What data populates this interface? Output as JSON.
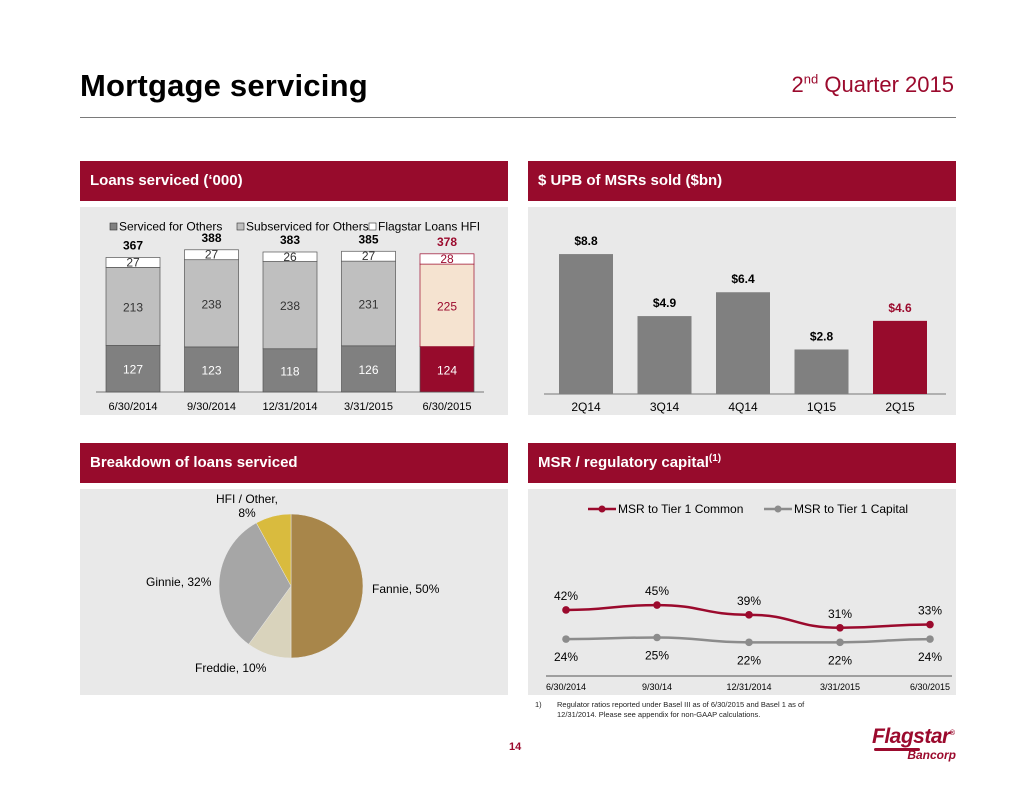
{
  "header": {
    "title": "Mortgage servicing",
    "quarter_base": "2",
    "quarter_sup": "nd",
    "quarter_rest": " Quarter 2015"
  },
  "panels": {
    "loans_serviced": "Loans serviced (‘000)",
    "msrs_sold": "$ UPB of MSRs sold ($bn)",
    "breakdown": "Breakdown of loans serviced",
    "msr_capital": "MSR / regulatory capital",
    "msr_capital_sup": "(1)"
  },
  "footnote": {
    "num": "1)",
    "text": "Regulator ratios reported under Basel III as of 6/30/2015 and Basel 1 as of 12/31/2014.  Please see appendix for non-GAAP calculations."
  },
  "page_number": "14",
  "logo": {
    "main": "Flagstar",
    "sub": "Bancorp",
    "mark": "®"
  },
  "colors": {
    "brand": "#970b2c",
    "bar_dark": "#808080",
    "bar_mid": "#bfbfbf",
    "bar_light": "#ffffff",
    "highlight_light": "#f5e3d0",
    "panel_bg": "#e9e9e9"
  },
  "chart_data": [
    {
      "type": "bar",
      "stacked": true,
      "title": "Loans serviced (‘000)",
      "categories": [
        "6/30/2014",
        "9/30/2014",
        "12/31/2014",
        "3/31/2015",
        "6/30/2015"
      ],
      "series": [
        {
          "name": "Serviced for Others",
          "values": [
            127,
            123,
            118,
            126,
            124
          ]
        },
        {
          "name": "Subserviced for Others",
          "values": [
            213,
            238,
            238,
            231,
            225
          ]
        },
        {
          "name": "Flagstar Loans HFI",
          "values": [
            27,
            27,
            26,
            27,
            28
          ]
        }
      ],
      "totals": [
        367,
        388,
        383,
        385,
        378
      ],
      "legend": "top",
      "highlight_index": 4
    },
    {
      "type": "bar",
      "title": "$ UPB of MSRs sold ($bn)",
      "categories": [
        "2Q14",
        "3Q14",
        "4Q14",
        "1Q15",
        "2Q15"
      ],
      "values": [
        8.8,
        4.9,
        6.4,
        2.8,
        4.6
      ],
      "labels": [
        "$8.8",
        "$4.9",
        "$6.4",
        "$2.8",
        "$4.6"
      ],
      "highlight_index": 4
    },
    {
      "type": "pie",
      "title": "Breakdown of loans serviced",
      "slices": [
        {
          "label": "Fannie, 50%",
          "value": 50,
          "color": "#a8864a"
        },
        {
          "label": "Freddie, 10%",
          "value": 10,
          "color": "#d9d3bc"
        },
        {
          "label": "Ginnie, 32%",
          "value": 32,
          "color": "#a6a6a6"
        },
        {
          "label_line1": "HFI / Other,",
          "label_line2": "8%",
          "value": 8,
          "color": "#d9bb3e"
        }
      ]
    },
    {
      "type": "line",
      "title": "MSR / regulatory capital",
      "categories": [
        "6/30/2014",
        "9/30/14",
        "12/31/2014",
        "3/31/2015",
        "6/30/2015"
      ],
      "series": [
        {
          "name": "MSR to Tier 1 Common",
          "values": [
            42,
            45,
            39,
            31,
            33
          ],
          "labels": [
            "42%",
            "45%",
            "39%",
            "31%",
            "33%"
          ],
          "color": "#9b0a2d"
        },
        {
          "name": "MSR to Tier 1 Capital",
          "values": [
            24,
            25,
            22,
            22,
            24
          ],
          "labels": [
            "24%",
            "25%",
            "22%",
            "22%",
            "24%"
          ],
          "color": "#8c8c8c"
        }
      ],
      "ylim": [
        0,
        60
      ],
      "legend": "top"
    }
  ]
}
